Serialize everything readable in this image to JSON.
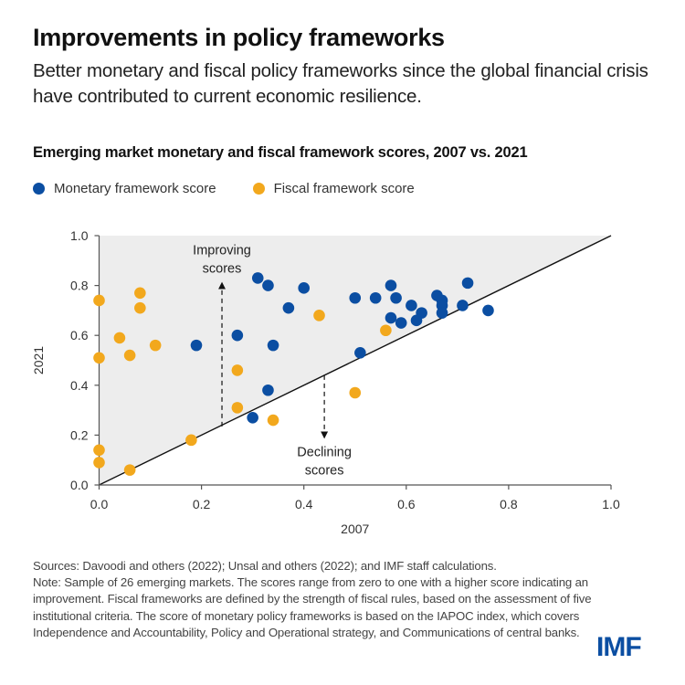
{
  "header": {
    "title": "Improvements in policy frameworks",
    "subtitle": "Better monetary and fiscal policy frameworks since the global financial crisis have contributed to current economic resilience."
  },
  "colors": {
    "monetary": "#0B4EA2",
    "fiscal": "#F2A81D",
    "improving_region": "#EDEDED",
    "axis": "#555555",
    "brand": "#0B4EA2"
  },
  "chart_data": {
    "type": "scatter",
    "title": "Emerging market monetary and fiscal framework scores, 2007 vs. 2021",
    "xlabel": "2007",
    "ylabel": "2021",
    "xlim": [
      0,
      1
    ],
    "ylim": [
      0,
      1
    ],
    "x_ticks": [
      "0.0",
      "0.2",
      "0.4",
      "0.6",
      "0.8",
      "1.0"
    ],
    "y_ticks": [
      "0.0",
      "0.2",
      "0.4",
      "0.6",
      "0.8",
      "1.0"
    ],
    "grid": false,
    "legend_position": "top-left",
    "reference_line": "45-degree line (y = x)",
    "annotations": [
      {
        "text_lines": [
          "Improving",
          "scores"
        ],
        "direction": "up",
        "x": 0.24,
        "y_from": 0.235,
        "y_to": 0.8
      },
      {
        "text_lines": [
          "Declining",
          "scores"
        ],
        "direction": "down",
        "x": 0.44,
        "y_from": 0.44,
        "y_to": 0.2
      }
    ],
    "series": [
      {
        "name": "Monetary framework score",
        "color_key": "monetary",
        "points": [
          [
            0.19,
            0.56
          ],
          [
            0.27,
            0.6
          ],
          [
            0.3,
            0.27
          ],
          [
            0.31,
            0.83
          ],
          [
            0.33,
            0.8
          ],
          [
            0.33,
            0.38
          ],
          [
            0.34,
            0.56
          ],
          [
            0.37,
            0.71
          ],
          [
            0.4,
            0.79
          ],
          [
            0.5,
            0.75
          ],
          [
            0.51,
            0.53
          ],
          [
            0.54,
            0.75
          ],
          [
            0.57,
            0.8
          ],
          [
            0.58,
            0.75
          ],
          [
            0.57,
            0.67
          ],
          [
            0.59,
            0.65
          ],
          [
            0.61,
            0.72
          ],
          [
            0.63,
            0.69
          ],
          [
            0.62,
            0.66
          ],
          [
            0.66,
            0.76
          ],
          [
            0.67,
            0.74
          ],
          [
            0.67,
            0.72
          ],
          [
            0.67,
            0.69
          ],
          [
            0.72,
            0.81
          ],
          [
            0.71,
            0.72
          ],
          [
            0.76,
            0.7
          ]
        ]
      },
      {
        "name": "Fiscal framework score",
        "color_key": "fiscal",
        "points": [
          [
            0.0,
            0.74
          ],
          [
            0.08,
            0.77
          ],
          [
            0.08,
            0.71
          ],
          [
            0.04,
            0.59
          ],
          [
            0.11,
            0.56
          ],
          [
            0.06,
            0.52
          ],
          [
            0.0,
            0.51
          ],
          [
            0.0,
            0.14
          ],
          [
            0.0,
            0.09
          ],
          [
            0.06,
            0.06
          ],
          [
            0.18,
            0.18
          ],
          [
            0.27,
            0.46
          ],
          [
            0.27,
            0.31
          ],
          [
            0.34,
            0.26
          ],
          [
            0.43,
            0.68
          ],
          [
            0.5,
            0.37
          ],
          [
            0.56,
            0.62
          ]
        ]
      }
    ]
  },
  "footnote": {
    "sources": "Sources: Davoodi and others (2022); Unsal and others (2022); and IMF staff calculations.",
    "note": "Note: Sample of 26 emerging markets. The scores range from zero to one with a higher score indicating an improvement. Fiscal frameworks are defined by the strength of fiscal rules, based on the assessment of five institutional criteria. The score of monetary policy frameworks is based on the IAPOC index, which covers Independence and Accountability, Policy and Operational strategy, and Communications of central banks."
  },
  "logo": {
    "text": "IMF"
  }
}
